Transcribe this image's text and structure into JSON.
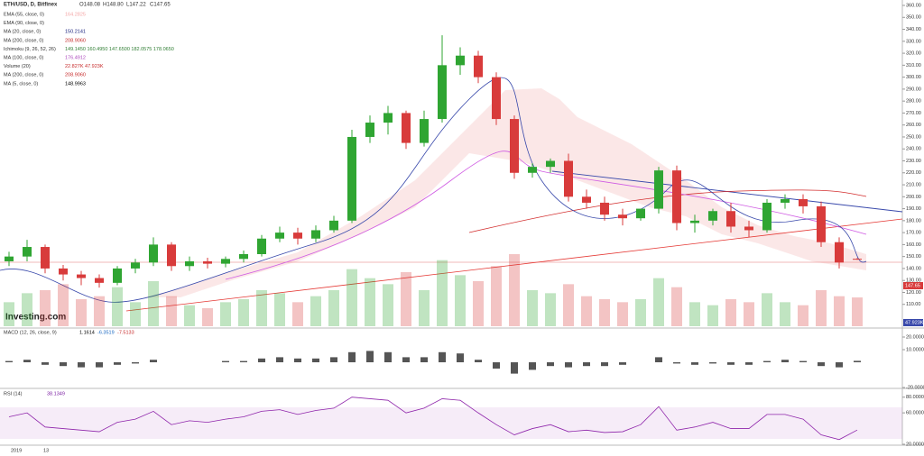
{
  "header": {
    "symbol": "ETH/USD, D, Bitfinex",
    "open": "O148.08",
    "high": "H148.80",
    "low": "L147.22",
    "close": "C147.65"
  },
  "indicators": [
    {
      "label": "EMA (55, close, 0)",
      "value": "164.2825",
      "color": "#f4a6a6"
    },
    {
      "label": "EMA (90, close, 0)",
      "value": "",
      "color": "#9fc5e8"
    },
    {
      "label": "MA (20, close, 0)",
      "value": "150.2141",
      "color": "#1a237e"
    },
    {
      "label": "MA (200, close, 0)",
      "value": "208.9060",
      "color": "#c62828"
    },
    {
      "label": "Ichimoku (9, 26, 52, 26)",
      "value": "149.1450  160.4950  147.6500  182.0575  178.0650",
      "color": "#2e7d32"
    },
    {
      "label": "MA (100, close, 0)",
      "value": "176.4912",
      "color": "#ab47bc"
    },
    {
      "label": "Volume (20)",
      "value": "22.827K  47.923K",
      "color": "#c62828"
    },
    {
      "label": "MA (200, close, 0)",
      "value": "208.9060",
      "color": "#c62828"
    },
    {
      "label": "MA (5, close, 0)",
      "value": "148.9963",
      "color": "#000000"
    }
  ],
  "chart_data": {
    "type": "candlestick",
    "open": [
      146,
      150,
      158,
      140,
      135,
      132,
      128,
      140,
      145,
      160,
      142,
      146,
      144,
      148,
      152,
      165,
      170,
      165,
      172,
      180,
      250,
      262,
      270,
      245,
      265,
      310,
      318,
      300,
      265,
      220,
      225,
      230,
      200,
      195,
      185,
      182,
      190,
      222,
      178,
      180,
      188,
      175,
      172,
      195,
      198,
      192,
      162,
      148.08
    ],
    "high": [
      154,
      164,
      160,
      143,
      138,
      135,
      142,
      148,
      166,
      162,
      150,
      149,
      150,
      155,
      168,
      175,
      174,
      176,
      184,
      256,
      268,
      276,
      272,
      272,
      335,
      325,
      322,
      304,
      268,
      228,
      232,
      236,
      206,
      200,
      190,
      190,
      225,
      226,
      185,
      190,
      195,
      180,
      198,
      202,
      202,
      196,
      166,
      148.8
    ],
    "low": [
      142,
      146,
      136,
      130,
      126,
      124,
      126,
      136,
      142,
      138,
      138,
      140,
      141,
      145,
      150,
      162,
      160,
      162,
      170,
      178,
      245,
      252,
      240,
      242,
      262,
      302,
      295,
      260,
      215,
      216,
      220,
      196,
      190,
      180,
      176,
      180,
      186,
      172,
      170,
      176,
      170,
      166,
      170,
      190,
      186,
      158,
      140,
      147.22
    ],
    "close": [
      150,
      158,
      140,
      135,
      132,
      128,
      140,
      145,
      160,
      142,
      146,
      144,
      148,
      152,
      165,
      170,
      165,
      172,
      180,
      250,
      262,
      270,
      245,
      265,
      310,
      318,
      300,
      265,
      220,
      225,
      230,
      200,
      195,
      185,
      182,
      190,
      222,
      178,
      180,
      188,
      175,
      172,
      195,
      198,
      192,
      162,
      145,
      147.65
    ],
    "volume": [
      40,
      55,
      60,
      70,
      45,
      50,
      65,
      40,
      75,
      50,
      35,
      30,
      40,
      45,
      60,
      55,
      40,
      50,
      60,
      95,
      80,
      70,
      90,
      60,
      110,
      85,
      75,
      100,
      120,
      60,
      55,
      70,
      50,
      45,
      40,
      45,
      80,
      65,
      40,
      35,
      45,
      40,
      55,
      40,
      35,
      60,
      50,
      47.923
    ],
    "up_color": "#2fa532",
    "down_color": "#d83b3b",
    "ylim": [
      100,
      360
    ],
    "yticks": [
      {
        "value": 360,
        "label": "360.00"
      },
      {
        "value": 350,
        "label": "350.00"
      },
      {
        "value": 340,
        "label": "340.00"
      },
      {
        "value": 330,
        "label": "330.00"
      },
      {
        "value": 320,
        "label": "320.00"
      },
      {
        "value": 310,
        "label": "310.00"
      },
      {
        "value": 300,
        "label": "300.00"
      },
      {
        "value": 290,
        "label": "290.00"
      },
      {
        "value": 280,
        "label": "280.00"
      },
      {
        "value": 270,
        "label": "270.00"
      },
      {
        "value": 260,
        "label": "260.00"
      },
      {
        "value": 250,
        "label": "250.00"
      },
      {
        "value": 240,
        "label": "240.00"
      },
      {
        "value": 230,
        "label": "230.00"
      },
      {
        "value": 220,
        "label": "220.00"
      },
      {
        "value": 210,
        "label": "210.00"
      },
      {
        "value": 200,
        "label": "200.00"
      },
      {
        "value": 190,
        "label": "190.00"
      },
      {
        "value": 180,
        "label": "180.00"
      },
      {
        "value": 170,
        "label": "170.00"
      },
      {
        "value": 160,
        "label": "160.00"
      },
      {
        "value": 150,
        "label": "150.00"
      },
      {
        "value": 140,
        "label": "140.00"
      },
      {
        "value": 130,
        "label": "130.00"
      },
      {
        "value": 120,
        "label": "120.00"
      },
      {
        "value": 110,
        "label": "110.00"
      }
    ],
    "price_tag": "147.65",
    "volume_tag": "47.923K",
    "brand": "Investing.com"
  },
  "macd": {
    "label": "MACD (12, 26, close, 9)",
    "values": [
      "1.1614",
      "-6.3519",
      "-7.5133"
    ],
    "hist": [
      1,
      2,
      -2,
      -3,
      -4,
      -4,
      -2,
      -1,
      2,
      0,
      0,
      0,
      1,
      1,
      3,
      4,
      3,
      3,
      4,
      8,
      9,
      8,
      4,
      4,
      8,
      7,
      2,
      -5,
      -9,
      -6,
      -3,
      -4,
      -3,
      -3,
      -2,
      0,
      4,
      -1,
      -2,
      -1,
      -2,
      -2,
      1,
      2,
      1,
      -3,
      -4,
      1.1614
    ],
    "ticks": [
      {
        "value": 20,
        "label": "20.0000"
      },
      {
        "value": 10,
        "label": "10.0000"
      },
      {
        "value": -20,
        "label": "-20.0000"
      }
    ]
  },
  "rsi": {
    "label": "RSI (14)",
    "value": "38.1349",
    "values": [
      55,
      60,
      42,
      40,
      38,
      36,
      48,
      52,
      62,
      45,
      50,
      48,
      52,
      55,
      62,
      64,
      58,
      63,
      66,
      80,
      78,
      76,
      60,
      66,
      78,
      76,
      60,
      45,
      32,
      40,
      45,
      36,
      38,
      35,
      36,
      45,
      68,
      38,
      42,
      48,
      40,
      40,
      58,
      58,
      52,
      32,
      26,
      38.1349
    ],
    "ticks": [
      {
        "value": 80,
        "label": "80.0000"
      },
      {
        "value": 60,
        "label": "60.0000"
      },
      {
        "value": 20,
        "label": "20.0000"
      }
    ]
  },
  "x_labels": [
    "2019",
    "13"
  ]
}
